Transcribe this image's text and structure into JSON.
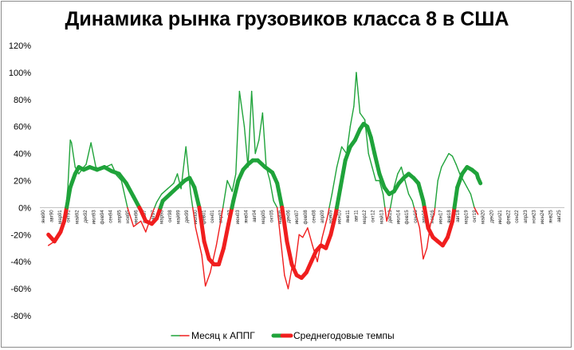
{
  "chart_data": {
    "type": "line",
    "title": "Динамика рынка грузовиков класса 8 в США",
    "xlabel": "",
    "ylabel": "",
    "y_unit": "%",
    "ylim": [
      -80,
      120
    ],
    "yticks": [
      -80,
      -60,
      -40,
      -20,
      0,
      20,
      40,
      60,
      80,
      100,
      120
    ],
    "xlim": [
      "1990-01",
      "2025-12"
    ],
    "x_tick_labels": [
      "янв90",
      "авг90",
      "мар91",
      "окт91",
      "май92",
      "дек92",
      "июл93",
      "фев94",
      "сен94",
      "апр95",
      "ноя95",
      "июн96",
      "янв97",
      "авг97",
      "мар98",
      "окт98",
      "май99",
      "дек99",
      "июл00",
      "фев01",
      "сен01",
      "апр02",
      "ноя02",
      "июн03",
      "янв04",
      "авг04",
      "мар05",
      "окт05",
      "май06",
      "дек06",
      "июл07",
      "фев08",
      "сен08",
      "апр09",
      "ноя09",
      "июн10",
      "янв11",
      "авг11",
      "мар12",
      "окт12",
      "май13",
      "дек13",
      "июл14",
      "фев15",
      "сен15",
      "апр16",
      "ноя16",
      "июн17",
      "янв18",
      "авг18",
      "мар19",
      "окт19",
      "май20",
      "дек20",
      "июл21",
      "фев22",
      "сен22",
      "апр23",
      "ноя23",
      "июн24",
      "янв25",
      "авг25"
    ],
    "grid": false,
    "legend_position": "bottom",
    "positive_color": "#1fa33a",
    "negative_color": "#f01e1e",
    "series": [
      {
        "name": "Месяц к АППГ",
        "style": "thin",
        "x": [
          "1990-08",
          "1991-01",
          "1991-06",
          "1991-09",
          "1991-12",
          "1992-02",
          "1992-03",
          "1992-06",
          "1992-09",
          "1993-01",
          "1993-03",
          "1993-07",
          "1993-11",
          "1994-03",
          "1994-07",
          "1994-12",
          "1995-04",
          "1995-08",
          "1996-01",
          "1996-06",
          "1996-12",
          "1997-04",
          "1997-09",
          "1998-01",
          "1998-05",
          "1998-10",
          "1999-03",
          "1999-06",
          "1999-09",
          "2000-01",
          "2000-05",
          "2000-09",
          "2001-02",
          "2001-05",
          "2001-09",
          "2002-02",
          "2002-06",
          "2002-11",
          "2003-03",
          "2003-06",
          "2003-09",
          "2004-01",
          "2004-04",
          "2004-07",
          "2004-10",
          "2005-01",
          "2005-04",
          "2005-07",
          "2005-10",
          "2006-01",
          "2006-04",
          "2006-07",
          "2006-10",
          "2007-01",
          "2007-04",
          "2007-06",
          "2007-10",
          "2008-01",
          "2008-05",
          "2008-09",
          "2009-01",
          "2009-05",
          "2009-09",
          "2010-01",
          "2010-05",
          "2010-09",
          "2011-01",
          "2011-04",
          "2011-07",
          "2011-09",
          "2011-12",
          "2012-04",
          "2012-07",
          "2012-10",
          "2013-01",
          "2013-04",
          "2013-07",
          "2013-10",
          "2014-01",
          "2014-04",
          "2014-07",
          "2014-10",
          "2015-01",
          "2015-04",
          "2015-07",
          "2015-10",
          "2016-01",
          "2016-04",
          "2016-07",
          "2016-10",
          "2017-01",
          "2017-04",
          "2017-07",
          "2017-10",
          "2018-01",
          "2018-04",
          "2018-07",
          "2018-10",
          "2019-01",
          "2019-04",
          "2019-07",
          "2019-10",
          "2020-01"
        ],
        "values": [
          -28,
          -25,
          -20,
          -12,
          15,
          50,
          48,
          30,
          25,
          30,
          32,
          48,
          30,
          28,
          30,
          32,
          24,
          20,
          0,
          -14,
          -10,
          -18,
          -5,
          4,
          10,
          14,
          18,
          25,
          14,
          45,
          10,
          -15,
          -35,
          -58,
          -48,
          -28,
          -8,
          20,
          12,
          25,
          86,
          60,
          30,
          86,
          40,
          50,
          70,
          30,
          20,
          5,
          0,
          -25,
          -50,
          -60,
          -45,
          -48,
          -20,
          -22,
          -15,
          -28,
          -40,
          -22,
          -8,
          10,
          30,
          45,
          40,
          60,
          75,
          100,
          70,
          65,
          40,
          30,
          20,
          20,
          10,
          -10,
          0,
          15,
          25,
          30,
          20,
          10,
          5,
          -5,
          -15,
          -38,
          -30,
          -12,
          -5,
          20,
          30,
          35,
          40,
          38,
          32,
          25,
          20,
          15,
          10,
          0,
          -5
        ]
      },
      {
        "name": "Среднегодовые темпы",
        "style": "thick",
        "x": [
          "1990-08",
          "1991-01",
          "1991-06",
          "1991-09",
          "1991-12",
          "1992-02",
          "1992-06",
          "1992-09",
          "1993-01",
          "1993-06",
          "1993-12",
          "1994-06",
          "1994-12",
          "1995-06",
          "1995-12",
          "1996-06",
          "1996-12",
          "1997-04",
          "1997-09",
          "1998-01",
          "1998-06",
          "1998-12",
          "1999-06",
          "1999-12",
          "2000-04",
          "2000-08",
          "2000-12",
          "2001-04",
          "2001-08",
          "2001-12",
          "2002-04",
          "2002-08",
          "2002-12",
          "2003-04",
          "2003-08",
          "2003-12",
          "2004-04",
          "2004-08",
          "2004-12",
          "2005-06",
          "2005-12",
          "2006-04",
          "2006-08",
          "2006-12",
          "2007-04",
          "2007-08",
          "2007-12",
          "2008-04",
          "2008-08",
          "2008-12",
          "2009-04",
          "2009-08",
          "2009-12",
          "2010-04",
          "2010-08",
          "2010-12",
          "2011-04",
          "2011-08",
          "2011-12",
          "2012-03",
          "2012-06",
          "2012-09",
          "2012-12",
          "2013-04",
          "2013-08",
          "2013-12",
          "2014-04",
          "2014-08",
          "2014-12",
          "2015-04",
          "2015-08",
          "2015-12",
          "2016-04",
          "2016-08",
          "2016-12",
          "2017-04",
          "2017-08",
          "2017-12",
          "2018-04",
          "2018-08",
          "2018-12",
          "2019-04",
          "2019-08",
          "2019-12",
          "2020-01",
          "2020-03"
        ],
        "values": [
          -20,
          -25,
          -18,
          -10,
          5,
          15,
          25,
          30,
          28,
          30,
          28,
          30,
          27,
          25,
          18,
          8,
          -2,
          -10,
          -12,
          -8,
          5,
          10,
          15,
          20,
          22,
          15,
          0,
          -25,
          -38,
          -42,
          -42,
          -30,
          -12,
          5,
          20,
          28,
          32,
          35,
          35,
          30,
          26,
          18,
          0,
          -25,
          -42,
          -50,
          -52,
          -48,
          -40,
          -32,
          -28,
          -30,
          -20,
          -5,
          15,
          35,
          45,
          50,
          58,
          62,
          60,
          52,
          40,
          25,
          15,
          10,
          12,
          18,
          22,
          25,
          22,
          18,
          5,
          -15,
          -22,
          -25,
          -28,
          -22,
          -10,
          15,
          25,
          30,
          28,
          25,
          22,
          18
        ]
      }
    ]
  }
}
